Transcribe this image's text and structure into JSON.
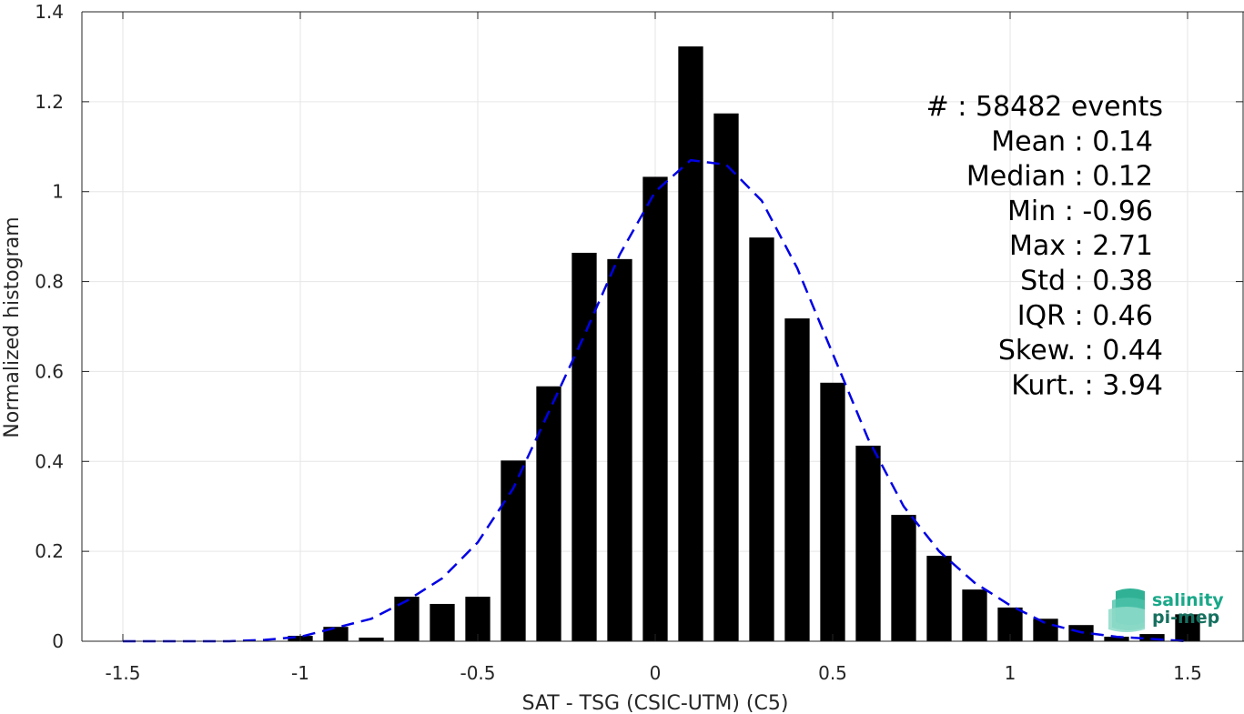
{
  "chart_data": {
    "type": "bar",
    "xlabel": "SAT - TSG (CSIC-UTM) (C5)",
    "ylabel": "Normalized histogram",
    "xlim": [
      -1.5,
      1.5
    ],
    "ylim": [
      0,
      1.4
    ],
    "x_ticks": [
      "-1.5",
      "-1",
      "-0.5",
      "0",
      "0.5",
      "1",
      "1.5"
    ],
    "y_ticks": [
      "0",
      "0.2",
      "0.4",
      "0.6",
      "0.8",
      "1",
      "1.2",
      "1.4"
    ],
    "grid": true,
    "bar_width": 0.07,
    "bins": [
      {
        "x": -1.0,
        "y": 0.012
      },
      {
        "x": -0.9,
        "y": 0.032
      },
      {
        "x": -0.8,
        "y": 0.008
      },
      {
        "x": -0.7,
        "y": 0.099
      },
      {
        "x": -0.6,
        "y": 0.083
      },
      {
        "x": -0.5,
        "y": 0.099
      },
      {
        "x": -0.4,
        "y": 0.402
      },
      {
        "x": -0.3,
        "y": 0.567
      },
      {
        "x": -0.2,
        "y": 0.864
      },
      {
        "x": -0.1,
        "y": 0.85
      },
      {
        "x": 0.0,
        "y": 1.033
      },
      {
        "x": 0.1,
        "y": 1.323
      },
      {
        "x": 0.2,
        "y": 1.174
      },
      {
        "x": 0.3,
        "y": 0.898
      },
      {
        "x": 0.4,
        "y": 0.718
      },
      {
        "x": 0.5,
        "y": 0.575
      },
      {
        "x": 0.6,
        "y": 0.435
      },
      {
        "x": 0.7,
        "y": 0.281
      },
      {
        "x": 0.8,
        "y": 0.19
      },
      {
        "x": 0.9,
        "y": 0.115
      },
      {
        "x": 1.0,
        "y": 0.075
      },
      {
        "x": 1.1,
        "y": 0.05
      },
      {
        "x": 1.2,
        "y": 0.036
      },
      {
        "x": 1.3,
        "y": 0.01
      },
      {
        "x": 1.4,
        "y": 0.016
      },
      {
        "x": 1.5,
        "y": 0.06
      }
    ],
    "fit_curve": {
      "style": "dashed",
      "color": "#0000e6",
      "x": [
        -1.5,
        -1.4,
        -1.3,
        -1.2,
        -1.1,
        -1.0,
        -0.9,
        -0.8,
        -0.7,
        -0.6,
        -0.5,
        -0.4,
        -0.3,
        -0.2,
        -0.1,
        0.0,
        0.1,
        0.2,
        0.3,
        0.4,
        0.5,
        0.6,
        0.7,
        0.8,
        0.9,
        1.0,
        1.1,
        1.2,
        1.3,
        1.4,
        1.5
      ],
      "y": [
        0.0,
        0.0,
        0.0,
        0.0,
        0.003,
        0.01,
        0.03,
        0.05,
        0.09,
        0.14,
        0.22,
        0.34,
        0.51,
        0.68,
        0.86,
        1.0,
        1.07,
        1.06,
        0.98,
        0.83,
        0.64,
        0.45,
        0.3,
        0.2,
        0.13,
        0.08,
        0.04,
        0.02,
        0.01,
        0.005,
        0.0
      ]
    }
  },
  "stats": [
    {
      "label": "#  : 58482 events",
      "align": "end-wide"
    },
    {
      "label": "Mean : 0.14",
      "align": "end"
    },
    {
      "label": "Median : 0.12",
      "align": "end"
    },
    {
      "label": "Min : -0.96",
      "align": "end"
    },
    {
      "label": "Max : 2.71",
      "align": "end"
    },
    {
      "label": "Std : 0.38",
      "align": "end"
    },
    {
      "label": "IQR : 0.46",
      "align": "end"
    },
    {
      "label": "Skew. : 0.44",
      "align": "end-wide"
    },
    {
      "label": "Kurt. : 3.94",
      "align": "end-wide"
    }
  ],
  "logo": {
    "line1": "salinity",
    "line2": "pi-mep",
    "color1": "#1aa889",
    "color2": "#16705f"
  },
  "colors": {
    "bars": "#000000",
    "grid": "#e6e6e6",
    "axis": "#262626"
  }
}
